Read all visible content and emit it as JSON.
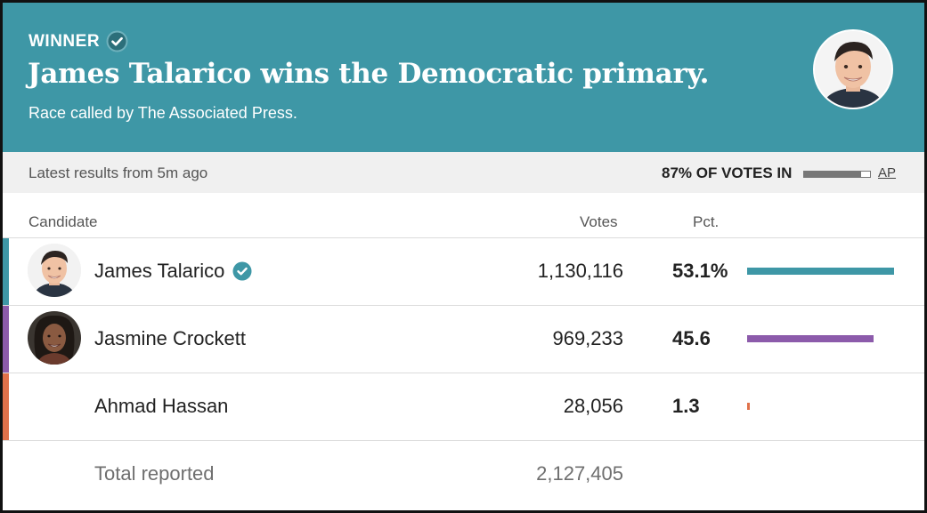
{
  "header": {
    "winner_label": "WINNER",
    "headline": "James Talarico wins the Democratic primary.",
    "subline": "Race called by The Associated Press.",
    "background_color": "#3e97a6"
  },
  "status": {
    "latest": "Latest results from 5m ago",
    "votes_in": "87% OF VOTES IN",
    "votes_in_fraction": 0.87,
    "source_link": "AP"
  },
  "table": {
    "columns": {
      "candidate": "Candidate",
      "votes": "Votes",
      "pct": "Pct."
    },
    "rows": [
      {
        "name": "James Talarico",
        "votes": "1,130,116",
        "pct": "53.1%",
        "pct_value": 53.1,
        "color": "#3e97a6",
        "winner": true,
        "avatar": "person-photo"
      },
      {
        "name": "Jasmine Crockett",
        "votes": "969,233",
        "pct": "45.6",
        "pct_value": 45.6,
        "color": "#8c5bab",
        "winner": false,
        "avatar": "person-photo"
      },
      {
        "name": "Ahmad Hassan",
        "votes": "28,056",
        "pct": "1.3",
        "pct_value": 1.3,
        "color": "#e0714a",
        "winner": false,
        "avatar": null
      }
    ],
    "total_label": "Total reported",
    "total_votes": "2,127,405"
  },
  "icons": {
    "winner_check": "check-circle-icon",
    "candidate_check": "check-circle-icon"
  }
}
